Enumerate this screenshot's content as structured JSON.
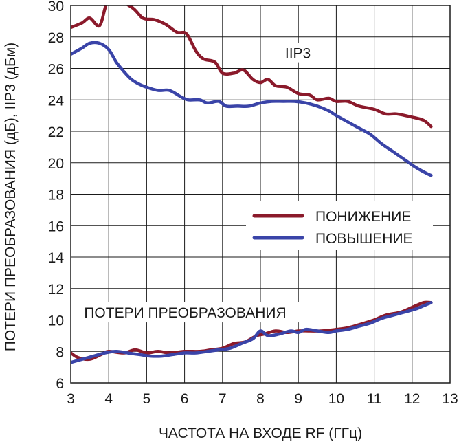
{
  "chart_data": {
    "type": "line",
    "xlabel": "ЧАСТОТА НА ВХОДЕ RF (ГГц)",
    "ylabel": "ПОТЕРИ ПРЕОБРАЗОВАНИЯ (дБ), IIP3 (дБм)",
    "xlim": [
      3,
      13
    ],
    "ylim": [
      6,
      30
    ],
    "xticks": [
      3,
      4,
      5,
      6,
      7,
      8,
      9,
      10,
      11,
      12,
      13
    ],
    "yticks": [
      6,
      8,
      10,
      12,
      14,
      16,
      18,
      20,
      22,
      24,
      26,
      28,
      30
    ],
    "grid": true,
    "legend_position": "center-right",
    "annotations": [
      {
        "text": "IIP3",
        "x": 8.65,
        "y": 27.0
      },
      {
        "text": "ПОТЕРИ ПРЕОБРАЗОВАНИЯ",
        "x": 3.35,
        "y": 10.5
      }
    ],
    "colors": {
      "down": "#8b1a2b",
      "up": "#3a44a8"
    },
    "series": [
      {
        "name": "ПОНИЖЕНИЕ",
        "color": "#8b1a2b",
        "group": "iip3",
        "x": [
          3.0,
          3.3,
          3.5,
          3.75,
          3.9,
          4.0,
          4.6,
          4.9,
          5.2,
          5.5,
          5.8,
          6.05,
          6.3,
          6.5,
          6.8,
          7.0,
          7.3,
          7.55,
          7.8,
          8.0,
          8.2,
          8.4,
          8.7,
          9.0,
          9.3,
          9.5,
          9.8,
          10.0,
          10.3,
          10.6,
          11.0,
          11.3,
          11.6,
          12.0,
          12.3,
          12.5
        ],
        "values": [
          28.6,
          28.9,
          29.2,
          28.7,
          29.8,
          30.6,
          29.9,
          29.2,
          29.1,
          28.8,
          28.3,
          28.2,
          27.1,
          26.6,
          26.4,
          25.7,
          25.7,
          25.9,
          25.3,
          25.1,
          25.3,
          24.9,
          24.8,
          24.4,
          24.3,
          24.0,
          24.1,
          23.9,
          23.9,
          23.6,
          23.4,
          23.1,
          23.1,
          22.9,
          22.7,
          22.3
        ]
      },
      {
        "name": "ПОВЫШЕНИЕ",
        "color": "#3a44a8",
        "group": "iip3",
        "x": [
          3.0,
          3.3,
          3.5,
          3.75,
          4.0,
          4.2,
          4.4,
          4.6,
          4.8,
          5.0,
          5.3,
          5.6,
          5.9,
          6.1,
          6.4,
          6.6,
          6.9,
          7.1,
          7.4,
          7.7,
          8.0,
          8.3,
          8.6,
          8.9,
          9.2,
          9.5,
          9.8,
          10.0,
          10.3,
          10.6,
          10.9,
          11.2,
          11.5,
          11.8,
          12.1,
          12.4,
          12.5
        ],
        "values": [
          26.9,
          27.3,
          27.6,
          27.6,
          27.2,
          26.4,
          25.8,
          25.3,
          25.0,
          24.8,
          24.6,
          24.6,
          24.2,
          24.0,
          24.0,
          23.8,
          23.9,
          23.6,
          23.6,
          23.6,
          23.8,
          23.9,
          23.9,
          23.9,
          23.8,
          23.6,
          23.3,
          23.0,
          22.6,
          22.2,
          21.8,
          21.2,
          20.7,
          20.2,
          19.7,
          19.3,
          19.2
        ]
      },
      {
        "name": "ПОНИЖЕНИЕ",
        "color": "#8b1a2b",
        "group": "conversion_loss",
        "x": [
          3.0,
          3.2,
          3.5,
          3.8,
          4.0,
          4.4,
          4.7,
          5.0,
          5.3,
          5.6,
          6.0,
          6.4,
          6.7,
          7.0,
          7.3,
          7.6,
          7.9,
          8.1,
          8.4,
          8.7,
          9.0,
          9.3,
          9.6,
          10.0,
          10.3,
          10.6,
          11.0,
          11.3,
          11.7,
          12.0,
          12.3,
          12.5
        ],
        "values": [
          7.9,
          7.6,
          7.5,
          7.8,
          8.0,
          7.9,
          8.1,
          7.9,
          8.0,
          7.9,
          8.0,
          8.0,
          8.1,
          8.2,
          8.5,
          8.6,
          9.0,
          9.1,
          9.3,
          9.2,
          9.3,
          9.3,
          9.3,
          9.4,
          9.5,
          9.7,
          10.0,
          10.3,
          10.5,
          10.8,
          11.1,
          11.1
        ]
      },
      {
        "name": "ПОВЫШЕНИЕ",
        "color": "#3a44a8",
        "group": "conversion_loss",
        "x": [
          3.0,
          3.3,
          3.6,
          3.9,
          4.2,
          4.5,
          4.8,
          5.1,
          5.4,
          5.7,
          6.0,
          6.3,
          6.6,
          6.9,
          7.2,
          7.5,
          7.8,
          8.0,
          8.2,
          8.5,
          8.8,
          9.0,
          9.2,
          9.5,
          9.8,
          10.0,
          10.3,
          10.6,
          10.9,
          11.2,
          11.5,
          11.8,
          12.1,
          12.3,
          12.5
        ],
        "values": [
          7.3,
          7.5,
          7.7,
          7.9,
          8.0,
          7.9,
          7.8,
          7.7,
          7.7,
          7.8,
          7.9,
          7.9,
          8.0,
          8.1,
          8.2,
          8.5,
          8.8,
          9.3,
          9.0,
          9.1,
          9.3,
          9.2,
          9.4,
          9.3,
          9.2,
          9.3,
          9.4,
          9.6,
          9.8,
          10.1,
          10.3,
          10.5,
          10.7,
          10.9,
          11.1
        ]
      }
    ]
  }
}
